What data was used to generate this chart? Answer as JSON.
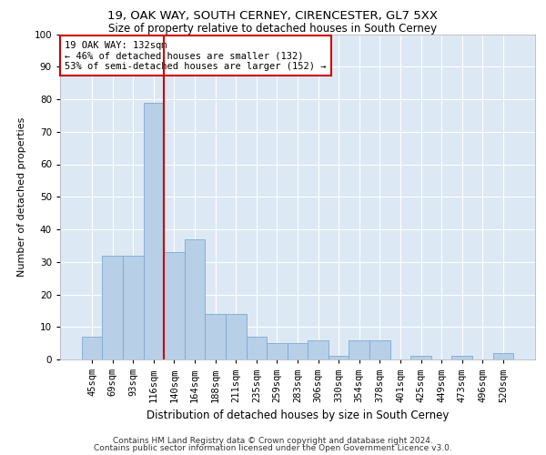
{
  "title1": "19, OAK WAY, SOUTH CERNEY, CIRENCESTER, GL7 5XX",
  "title2": "Size of property relative to detached houses in South Cerney",
  "xlabel": "Distribution of detached houses by size in South Cerney",
  "ylabel": "Number of detached properties",
  "categories": [
    "45sqm",
    "69sqm",
    "93sqm",
    "116sqm",
    "140sqm",
    "164sqm",
    "188sqm",
    "211sqm",
    "235sqm",
    "259sqm",
    "283sqm",
    "306sqm",
    "330sqm",
    "354sqm",
    "378sqm",
    "401sqm",
    "425sqm",
    "449sqm",
    "473sqm",
    "496sqm",
    "520sqm"
  ],
  "values": [
    7,
    32,
    32,
    79,
    33,
    37,
    14,
    14,
    7,
    5,
    5,
    6,
    1,
    6,
    6,
    0,
    1,
    0,
    1,
    0,
    2
  ],
  "bar_color": "#b8cfe8",
  "bar_edge_color": "#7aaad0",
  "background_color": "#dde8f5",
  "grid_color": "#ffffff",
  "red_line_index": 3,
  "annotation_text": "19 OAK WAY: 132sqm\n← 46% of detached houses are smaller (132)\n53% of semi-detached houses are larger (152) →",
  "annotation_box_color": "#ffffff",
  "annotation_box_edge": "#cc0000",
  "red_line_color": "#cc0000",
  "footer1": "Contains HM Land Registry data © Crown copyright and database right 2024.",
  "footer2": "Contains public sector information licensed under the Open Government Licence v3.0.",
  "ylim": [
    0,
    100
  ],
  "title1_fontsize": 9.5,
  "title2_fontsize": 8.5,
  "xlabel_fontsize": 8.5,
  "ylabel_fontsize": 8,
  "tick_fontsize": 7.5,
  "annotation_fontsize": 7.5,
  "footer_fontsize": 6.5
}
